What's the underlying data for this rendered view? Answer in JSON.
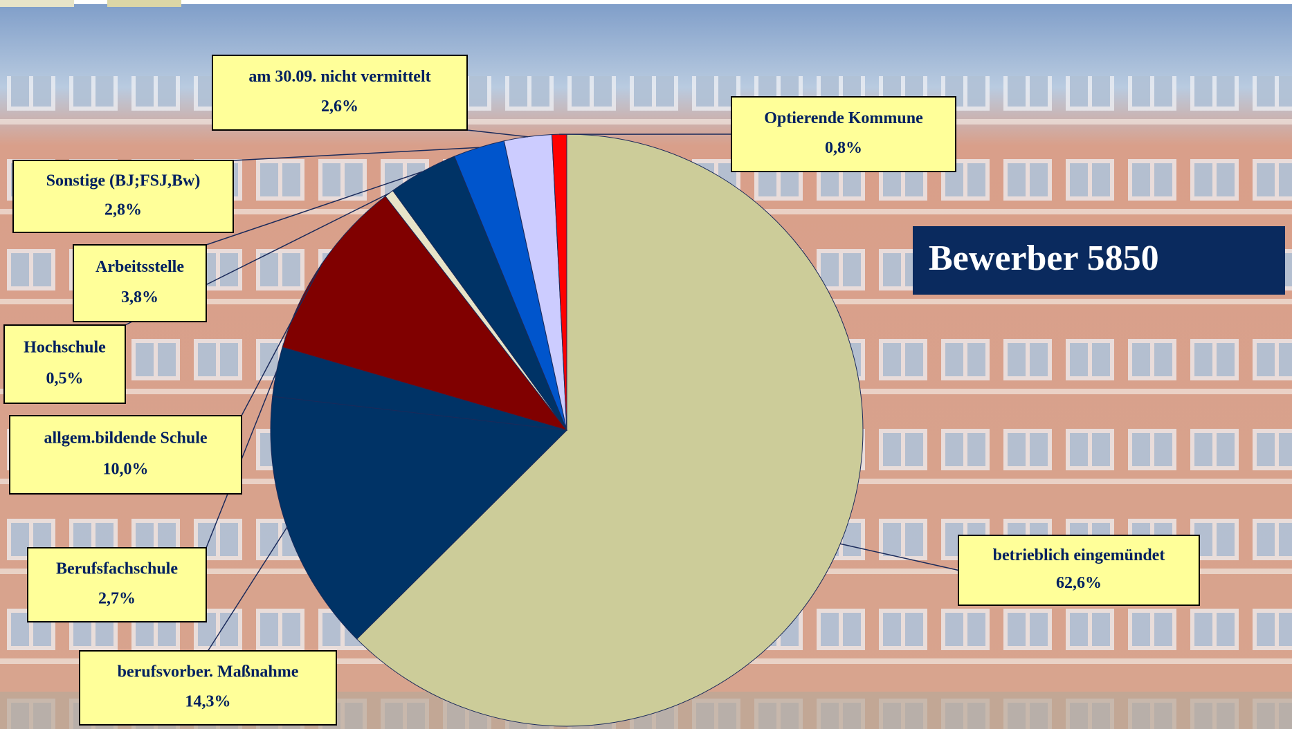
{
  "chart_data": {
    "type": "pie",
    "title": "Bewerber 5850",
    "categories": [
      "betrieblich eingemündet",
      "berufsvorber. Maßnahme",
      "Berufsfachschule",
      "allgem.bildende Schule",
      "Hochschule",
      "Arbeitsstelle",
      "Sonstige (BJ;FSJ,Bw)",
      "am 30.09. nicht vermittelt",
      "Optierende Kommune"
    ],
    "values": [
      62.6,
      14.3,
      2.7,
      10.0,
      0.5,
      3.8,
      2.8,
      2.6,
      0.8
    ],
    "value_labels": [
      "62,6%",
      "14,3%",
      "2,7%",
      "10,0%",
      "0,5%",
      "3,8%",
      "2,8%",
      "2,6%",
      "0,8%"
    ],
    "colors": [
      "#cccc99",
      "#003366",
      "#003366",
      "#800000",
      "#e8e4c8",
      "#003366",
      "#0055cc",
      "#ccccff",
      "#ff0000"
    ]
  }
}
